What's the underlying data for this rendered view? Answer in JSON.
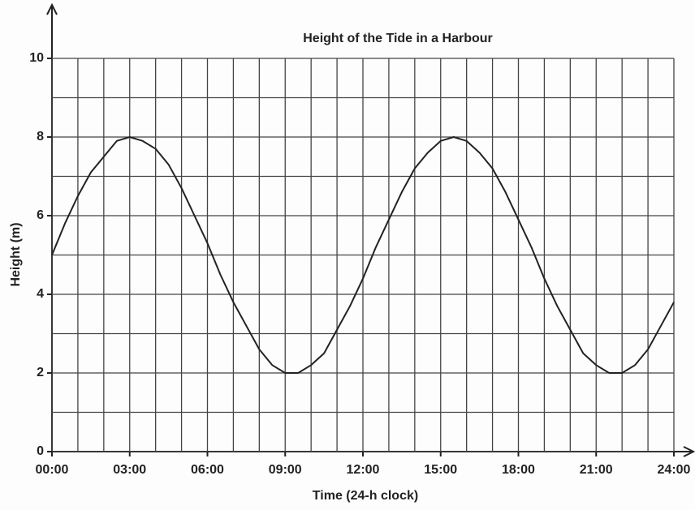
{
  "chart_data": {
    "type": "line",
    "title": "Height of the Tide in a  Harbour",
    "xlabel": "Time (24-h clock)",
    "ylabel": "Height (m)",
    "x": [
      0,
      0.5,
      1,
      1.5,
      2,
      2.5,
      3,
      3.5,
      4,
      4.5,
      5,
      5.5,
      6,
      6.5,
      7,
      7.5,
      8,
      8.5,
      9,
      9.5,
      10,
      10.5,
      11,
      11.5,
      12,
      12.5,
      13,
      13.5,
      14,
      14.5,
      15,
      15.5,
      16,
      16.5,
      17,
      17.5,
      18,
      18.5,
      19,
      19.5,
      20,
      20.5,
      21,
      21.5,
      22,
      22.5,
      23,
      23.5,
      24
    ],
    "values": [
      5.0,
      5.8,
      6.5,
      7.1,
      7.5,
      7.9,
      8.0,
      7.9,
      7.7,
      7.3,
      6.7,
      6.0,
      5.3,
      4.5,
      3.8,
      3.2,
      2.6,
      2.2,
      2.0,
      2.0,
      2.2,
      2.5,
      3.1,
      3.7,
      4.4,
      5.2,
      5.9,
      6.6,
      7.2,
      7.6,
      7.9,
      8.0,
      7.9,
      7.6,
      7.2,
      6.6,
      5.9,
      5.2,
      4.4,
      3.7,
      3.1,
      2.5,
      2.2,
      2.0,
      2.0,
      2.2,
      2.6,
      3.2,
      3.8
    ],
    "color": "#222222",
    "xlim": [
      0,
      24
    ],
    "ylim": [
      0,
      10
    ],
    "xticks": [
      {
        "value": 0,
        "label": "00:00"
      },
      {
        "value": 3,
        "label": "03:00"
      },
      {
        "value": 6,
        "label": "06:00"
      },
      {
        "value": 9,
        "label": "09:00"
      },
      {
        "value": 12,
        "label": "12:00"
      },
      {
        "value": 15,
        "label": "15:00"
      },
      {
        "value": 18,
        "label": "18:00"
      },
      {
        "value": 21,
        "label": "21:00"
      },
      {
        "value": 24,
        "label": "24:00"
      }
    ],
    "yticks": [
      0,
      2,
      4,
      6,
      8,
      10
    ],
    "xgrid": [
      0,
      1,
      2,
      3,
      4,
      5,
      6,
      7,
      8,
      9,
      10,
      11,
      12,
      13,
      14,
      15,
      16,
      17,
      18,
      19,
      20,
      21,
      22,
      23,
      24
    ],
    "ygrid": [
      0,
      1,
      2,
      3,
      4,
      5,
      6,
      7,
      8,
      9,
      10
    ],
    "grid": true
  }
}
